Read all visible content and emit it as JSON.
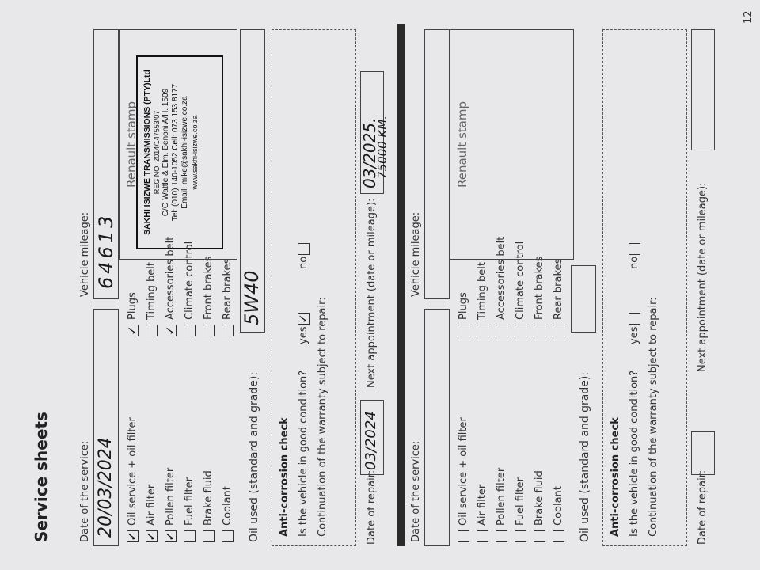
{
  "title": "Service sheets",
  "page_number": "12",
  "labels": {
    "date_of_service": "Date of the service:",
    "vehicle_mileage": "Vehicle mileage:",
    "renault_stamp": "Renault stamp",
    "oil_used": "Oil used (standard and grade):",
    "anti_corrosion": "Anti-corrosion check",
    "good_condition": "Is the vehicle in good condition?",
    "yes": "yes",
    "no": "no",
    "warranty": "Continuation of the warranty subject to repair:",
    "date_of_repair": "Date of repair:",
    "next_appointment": "Next appointment (date or mileage):"
  },
  "sheets": [
    {
      "date_of_service": "20/03/2024",
      "mileage": "64613",
      "oil_used": "5W40",
      "good_condition_yes": true,
      "good_condition_no": false,
      "date_of_repair": "03/2024",
      "next_appointment": [
        "03/2025.",
        "75000 KM."
      ],
      "checks_left": [
        {
          "label": "Oil service + oil filter",
          "checked": true
        },
        {
          "label": "Air filter",
          "checked": true
        },
        {
          "label": "Pollen filter",
          "checked": true
        },
        {
          "label": "Fuel filter",
          "checked": false
        },
        {
          "label": "Brake fluid",
          "checked": false
        },
        {
          "label": "Coolant",
          "checked": false
        }
      ],
      "checks_right": [
        {
          "label": "Plugs",
          "checked": true
        },
        {
          "label": "Timing belt",
          "checked": false
        },
        {
          "label": "Accessories belt",
          "checked": true
        },
        {
          "label": "Climate control",
          "checked": false
        },
        {
          "label": "Front brakes",
          "checked": false
        },
        {
          "label": "Rear brakes",
          "checked": false
        }
      ],
      "stamp": {
        "name": "SAKHI ISIZWE TRANSMISSIONS (PTY)Ltd",
        "reg": "REG NO. 2014/147553/07",
        "address": "C/O Wattle & Elm. Benoni A/H. 1509",
        "tel": "Tel: (010) 140-1052  Cell: 073 153 8177",
        "email": "Email: mike@sakhi-isizwe.co.za",
        "web": "www.sakhi-isizwe.co.za"
      }
    },
    {
      "date_of_service": "",
      "mileage": "",
      "oil_used": "",
      "good_condition_yes": false,
      "good_condition_no": false,
      "date_of_repair": "",
      "next_appointment": [
        "",
        ""
      ],
      "checks_left": [
        {
          "label": "Oil service + oil filter",
          "checked": false
        },
        {
          "label": "Air filter",
          "checked": false
        },
        {
          "label": "Pollen filter",
          "checked": false
        },
        {
          "label": "Fuel filter",
          "checked": false
        },
        {
          "label": "Brake fluid",
          "checked": false
        },
        {
          "label": "Coolant",
          "checked": false
        }
      ],
      "checks_right": [
        {
          "label": "Plugs",
          "checked": false
        },
        {
          "label": "Timing belt",
          "checked": false
        },
        {
          "label": "Accessories belt",
          "checked": false
        },
        {
          "label": "Climate control",
          "checked": false
        },
        {
          "label": "Front brakes",
          "checked": false
        },
        {
          "label": "Rear brakes",
          "checked": false
        }
      ]
    }
  ]
}
